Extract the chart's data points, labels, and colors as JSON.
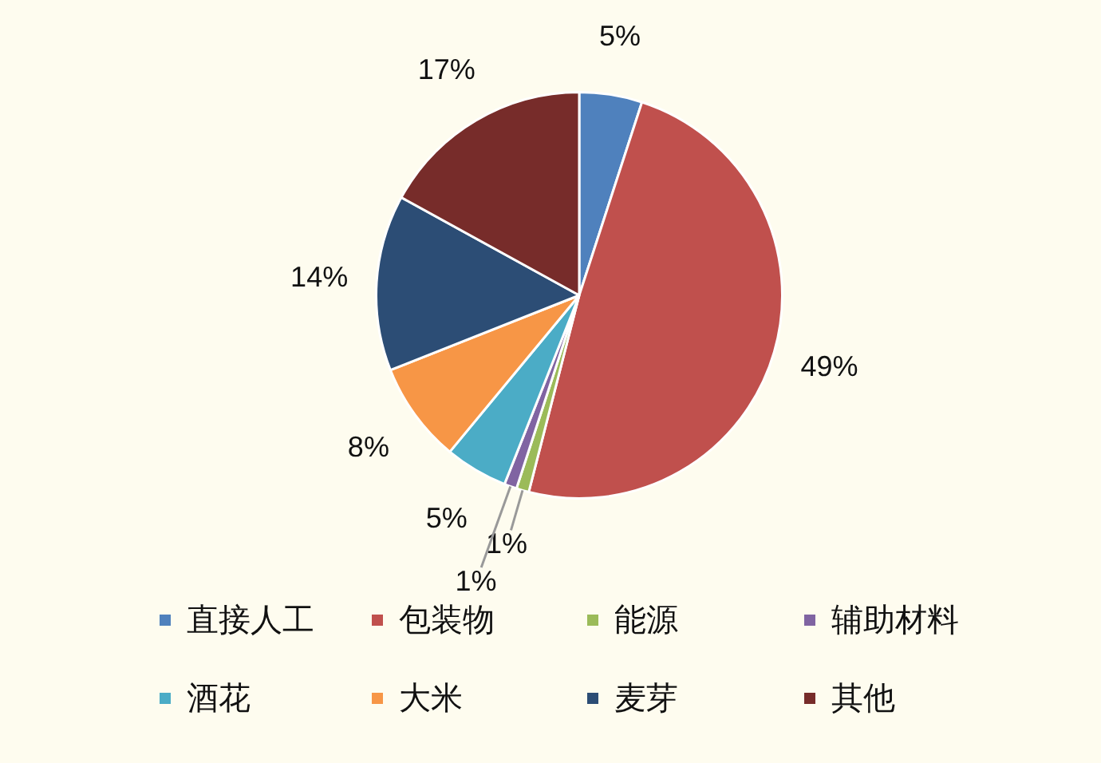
{
  "chart_data": {
    "type": "pie",
    "categories": [
      "直接人工",
      "包装物",
      "能源",
      "辅助材料",
      "酒花",
      "大米",
      "麦芽",
      "其他"
    ],
    "values": [
      5,
      49,
      1,
      1,
      5,
      8,
      14,
      17
    ],
    "colors": [
      "#4f81bd",
      "#c0504d",
      "#9bbb59",
      "#8064a2",
      "#4bacc6",
      "#f79646",
      "#2c4d75",
      "#772c2a"
    ],
    "value_labels": [
      "5%",
      "49%",
      "1%",
      "1%",
      "5%",
      "8%",
      "14%",
      "17%"
    ],
    "legend": "bottom"
  }
}
